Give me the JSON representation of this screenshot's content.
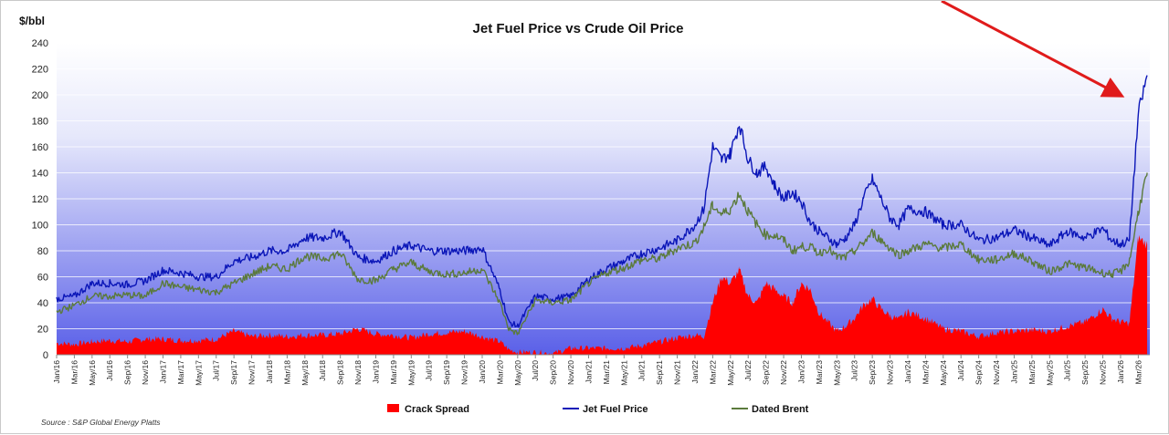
{
  "chart_data": {
    "type": "line",
    "title": "Jet Fuel Price vs Crude Oil Price",
    "ylabel": "$/bbl",
    "xlabel": "",
    "ylim": [
      0,
      240
    ],
    "yticks": [
      0,
      20,
      40,
      60,
      80,
      100,
      120,
      140,
      160,
      180,
      200,
      220,
      240
    ],
    "grid": true,
    "legend_position": "bottom",
    "source": "Source : S&P Global Energy Platts",
    "x_tick_labels": [
      "Jan/16",
      "Mar/16",
      "May/16",
      "Jul/16",
      "Sep/16",
      "Nov/16",
      "Jan/17",
      "Mar/17",
      "May/17",
      "Jul/17",
      "Sep/17",
      "Nov/17",
      "Jan/18",
      "Mar/18",
      "May/18",
      "Jul/18",
      "Sep/18",
      "Nov/18",
      "Jan/19",
      "Mar/19",
      "May/19",
      "Jul/19",
      "Sep/19",
      "Nov/19",
      "Jan/20",
      "Mar/20",
      "May/20",
      "Jul/20",
      "Sep/20",
      "Nov/20",
      "Jan/21",
      "Mar/21",
      "May/21",
      "Jul/21",
      "Sep/21",
      "Nov/21",
      "Jan/22",
      "Mar/22",
      "May/22",
      "Jul/22",
      "Sep/22",
      "Nov/22",
      "Jan/23",
      "Mar/23",
      "May/23",
      "Jul/23",
      "Sep/23",
      "Nov/23",
      "Jan/24",
      "Mar/24",
      "May/24",
      "Jul/24",
      "Sep/24",
      "Nov/24",
      "Jan/25",
      "Mar/25",
      "May/25",
      "Jul/25",
      "Sep/25",
      "Nov/25",
      "Jan/26",
      "Mar/26"
    ],
    "series": [
      {
        "name": "Crack Spread",
        "kind": "area",
        "color": "#ff0000",
        "points": [
          [
            "Jan/16",
            9
          ],
          [
            "Mar/16",
            8
          ],
          [
            "May/16",
            10
          ],
          [
            "Jul/16",
            11
          ],
          [
            "Sep/16",
            10
          ],
          [
            "Nov/16",
            12
          ],
          [
            "Jan/17",
            12
          ],
          [
            "Mar/17",
            11
          ],
          [
            "May/17",
            11
          ],
          [
            "Jul/17",
            12
          ],
          [
            "Sep/17",
            18
          ],
          [
            "Nov/17",
            14
          ],
          [
            "Jan/18",
            15
          ],
          [
            "Mar/18",
            14
          ],
          [
            "May/18",
            15
          ],
          [
            "Jul/18",
            15
          ],
          [
            "Sep/18",
            16
          ],
          [
            "Nov/18",
            20
          ],
          [
            "Jan/19",
            16
          ],
          [
            "Mar/19",
            15
          ],
          [
            "May/19",
            13
          ],
          [
            "Jul/19",
            16
          ],
          [
            "Sep/19",
            17
          ],
          [
            "Nov/19",
            18
          ],
          [
            "Jan/20",
            14
          ],
          [
            "Mar/20",
            10
          ],
          [
            "Apr/20",
            4
          ],
          [
            "May/20",
            2
          ],
          [
            "Jul/20",
            2
          ],
          [
            "Sep/20",
            1
          ],
          [
            "Nov/20",
            5
          ],
          [
            "Jan/21",
            5
          ],
          [
            "Mar/21",
            5
          ],
          [
            "May/21",
            5
          ],
          [
            "Jul/21",
            7
          ],
          [
            "Sep/21",
            10
          ],
          [
            "Nov/21",
            13
          ],
          [
            "Jan/22",
            15
          ],
          [
            "Feb/22",
            14
          ],
          [
            "Mar/22",
            40
          ],
          [
            "Apr/22",
            60
          ],
          [
            "May/22",
            55
          ],
          [
            "Jun/22",
            65
          ],
          [
            "Jul/22",
            45
          ],
          [
            "Aug/22",
            40
          ],
          [
            "Sep/22",
            55
          ],
          [
            "Oct/22",
            50
          ],
          [
            "Nov/22",
            45
          ],
          [
            "Dec/22",
            40
          ],
          [
            "Jan/23",
            55
          ],
          [
            "Feb/23",
            50
          ],
          [
            "Mar/23",
            32
          ],
          [
            "Apr/23",
            25
          ],
          [
            "May/23",
            18
          ],
          [
            "Jun/23",
            22
          ],
          [
            "Jul/23",
            28
          ],
          [
            "Aug/23",
            38
          ],
          [
            "Sep/23",
            43
          ],
          [
            "Oct/23",
            35
          ],
          [
            "Nov/23",
            30
          ],
          [
            "Dec/23",
            27
          ],
          [
            "Jan/24",
            33
          ],
          [
            "Mar/24",
            28
          ],
          [
            "May/24",
            20
          ],
          [
            "Jul/24",
            18
          ],
          [
            "Sep/24",
            14
          ],
          [
            "Nov/24",
            17
          ],
          [
            "Jan/25",
            18
          ],
          [
            "Mar/25",
            19
          ],
          [
            "May/25",
            18
          ],
          [
            "Jul/25",
            22
          ],
          [
            "Sep/25",
            25
          ],
          [
            "Nov/25",
            35
          ],
          [
            "Dec/25",
            28
          ],
          [
            "Jan/26",
            25
          ],
          [
            "Feb/26",
            24
          ],
          [
            "Mar/26",
            90
          ],
          [
            "Apr/26",
            85
          ]
        ]
      },
      {
        "name": "Jet Fuel Price",
        "kind": "line",
        "color": "#0b16b8",
        "points": [
          [
            "Jan/16",
            43
          ],
          [
            "Mar/16",
            45
          ],
          [
            "May/16",
            55
          ],
          [
            "Jul/16",
            55
          ],
          [
            "Sep/16",
            54
          ],
          [
            "Nov/16",
            57
          ],
          [
            "Jan/17",
            65
          ],
          [
            "Mar/17",
            63
          ],
          [
            "May/17",
            60
          ],
          [
            "Jul/17",
            60
          ],
          [
            "Sep/17",
            72
          ],
          [
            "Nov/17",
            75
          ],
          [
            "Jan/18",
            80
          ],
          [
            "Mar/18",
            80
          ],
          [
            "May/18",
            90
          ],
          [
            "Jul/18",
            90
          ],
          [
            "Sep/18",
            95
          ],
          [
            "Nov/18",
            75
          ],
          [
            "Jan/19",
            72
          ],
          [
            "Mar/19",
            80
          ],
          [
            "May/19",
            84
          ],
          [
            "Jul/19",
            80
          ],
          [
            "Sep/19",
            80
          ],
          [
            "Nov/19",
            80
          ],
          [
            "Jan/20",
            82
          ],
          [
            "Mar/20",
            50
          ],
          [
            "Apr/20",
            25
          ],
          [
            "May/20",
            22
          ],
          [
            "Jul/20",
            45
          ],
          [
            "Sep/20",
            43
          ],
          [
            "Nov/20",
            45
          ],
          [
            "Jan/21",
            58
          ],
          [
            "Mar/21",
            66
          ],
          [
            "May/21",
            72
          ],
          [
            "Jul/21",
            78
          ],
          [
            "Sep/21",
            82
          ],
          [
            "Nov/21",
            88
          ],
          [
            "Jan/22",
            100
          ],
          [
            "Feb/22",
            112
          ],
          [
            "Mar/22",
            160
          ],
          [
            "Apr/22",
            150
          ],
          [
            "May/22",
            155
          ],
          [
            "Jun/22",
            178
          ],
          [
            "Jul/22",
            150
          ],
          [
            "Aug/22",
            140
          ],
          [
            "Sep/22",
            145
          ],
          [
            "Oct/22",
            130
          ],
          [
            "Nov/22",
            120
          ],
          [
            "Dec/22",
            125
          ],
          [
            "Jan/23",
            118
          ],
          [
            "Feb/23",
            102
          ],
          [
            "Mar/23",
            95
          ],
          [
            "Apr/23",
            90
          ],
          [
            "May/23",
            85
          ],
          [
            "Jun/23",
            90
          ],
          [
            "Jul/23",
            100
          ],
          [
            "Aug/23",
            120
          ],
          [
            "Sep/23",
            135
          ],
          [
            "Oct/23",
            120
          ],
          [
            "Nov/23",
            105
          ],
          [
            "Dec/23",
            100
          ],
          [
            "Jan/24",
            112
          ],
          [
            "Mar/24",
            110
          ],
          [
            "May/24",
            100
          ],
          [
            "Jul/24",
            100
          ],
          [
            "Sep/24",
            88
          ],
          [
            "Nov/24",
            90
          ],
          [
            "Jan/25",
            96
          ],
          [
            "Mar/25",
            90
          ],
          [
            "May/25",
            84
          ],
          [
            "Jul/25",
            95
          ],
          [
            "Sep/25",
            90
          ],
          [
            "Nov/25",
            97
          ],
          [
            "Dec/25",
            88
          ],
          [
            "Jan/26",
            85
          ],
          [
            "Feb/26",
            88
          ],
          [
            "Mar/26",
            185
          ],
          [
            "Apr/26",
            215
          ]
        ]
      },
      {
        "name": "Dated Brent",
        "kind": "line",
        "color": "#5b7a3c",
        "points": [
          [
            "Jan/16",
            33
          ],
          [
            "Mar/16",
            38
          ],
          [
            "May/16",
            45
          ],
          [
            "Jul/16",
            45
          ],
          [
            "Sep/16",
            46
          ],
          [
            "Nov/16",
            45
          ],
          [
            "Jan/17",
            55
          ],
          [
            "Mar/17",
            52
          ],
          [
            "May/17",
            50
          ],
          [
            "Jul/17",
            48
          ],
          [
            "Sep/17",
            55
          ],
          [
            "Nov/17",
            62
          ],
          [
            "Jan/18",
            68
          ],
          [
            "Mar/18",
            66
          ],
          [
            "May/18",
            76
          ],
          [
            "Jul/18",
            74
          ],
          [
            "Sep/18",
            78
          ],
          [
            "Nov/18",
            58
          ],
          [
            "Jan/19",
            57
          ],
          [
            "Mar/19",
            66
          ],
          [
            "May/19",
            71
          ],
          [
            "Jul/19",
            64
          ],
          [
            "Sep/19",
            62
          ],
          [
            "Nov/19",
            63
          ],
          [
            "Jan/20",
            66
          ],
          [
            "Mar/20",
            40
          ],
          [
            "Apr/20",
            20
          ],
          [
            "May/20",
            16
          ],
          [
            "Jul/20",
            42
          ],
          [
            "Sep/20",
            40
          ],
          [
            "Nov/20",
            42
          ],
          [
            "Jan/21",
            55
          ],
          [
            "Mar/21",
            63
          ],
          [
            "May/21",
            67
          ],
          [
            "Jul/21",
            73
          ],
          [
            "Sep/21",
            74
          ],
          [
            "Nov/21",
            82
          ],
          [
            "Jan/22",
            86
          ],
          [
            "Feb/22",
            98
          ],
          [
            "Mar/22",
            115
          ],
          [
            "Apr/22",
            108
          ],
          [
            "May/22",
            112
          ],
          [
            "Jun/22",
            124
          ],
          [
            "Jul/22",
            110
          ],
          [
            "Aug/22",
            100
          ],
          [
            "Sep/22",
            92
          ],
          [
            "Oct/22",
            92
          ],
          [
            "Nov/22",
            88
          ],
          [
            "Dec/22",
            80
          ],
          [
            "Jan/23",
            83
          ],
          [
            "Feb/23",
            83
          ],
          [
            "Mar/23",
            78
          ],
          [
            "Apr/23",
            82
          ],
          [
            "May/23",
            75
          ],
          [
            "Jun/23",
            75
          ],
          [
            "Jul/23",
            80
          ],
          [
            "Aug/23",
            86
          ],
          [
            "Sep/23",
            94
          ],
          [
            "Oct/23",
            88
          ],
          [
            "Nov/23",
            82
          ],
          [
            "Dec/23",
            77
          ],
          [
            "Jan/24",
            80
          ],
          [
            "Mar/24",
            85
          ],
          [
            "May/24",
            82
          ],
          [
            "Jul/24",
            85
          ],
          [
            "Sep/24",
            73
          ],
          [
            "Nov/24",
            73
          ],
          [
            "Jan/25",
            78
          ],
          [
            "Mar/25",
            72
          ],
          [
            "May/25",
            64
          ],
          [
            "Jul/25",
            70
          ],
          [
            "Sep/25",
            67
          ],
          [
            "Nov/25",
            63
          ],
          [
            "Dec/25",
            62
          ],
          [
            "Jan/26",
            64
          ],
          [
            "Feb/26",
            72
          ],
          [
            "Mar/26",
            110
          ],
          [
            "Apr/26",
            140
          ]
        ]
      }
    ]
  }
}
